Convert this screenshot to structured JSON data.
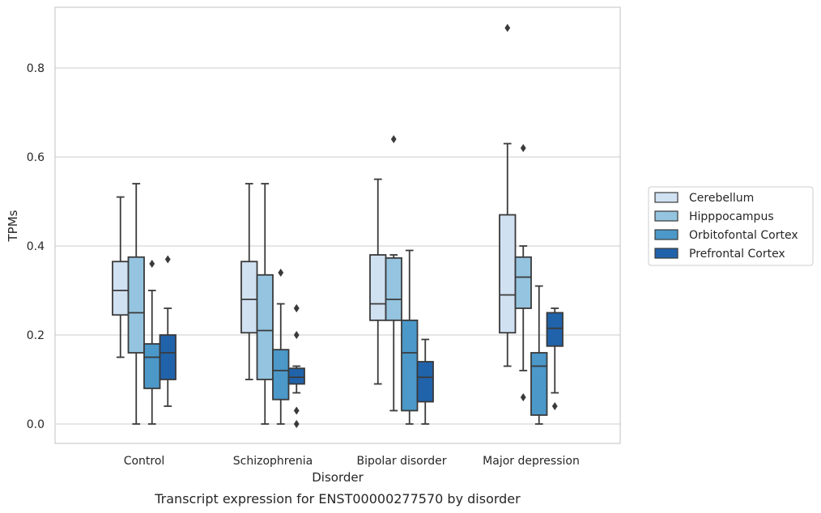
{
  "caption": "Transcript expression for ENST00000277570 by disorder",
  "chart_data": {
    "type": "box",
    "xlabel": "Disorder",
    "ylabel": "TPMs",
    "ylim": [
      -0.04,
      0.94
    ],
    "yticks": [
      0.0,
      0.2,
      0.4,
      0.6,
      0.8
    ],
    "ytick_labels": [
      "0.0",
      "0.2",
      "0.4",
      "0.6",
      "0.8"
    ],
    "grid": "horizontal",
    "legend_position": "right",
    "categories": [
      "Control",
      "Schizophrenia",
      "Bipolar disorder",
      "Major depression"
    ],
    "series": [
      {
        "name": "Cerebellum",
        "color": "#d0e1f2",
        "boxes": [
          {
            "min": 0.15,
            "q1": 0.245,
            "median": 0.3,
            "q3": 0.365,
            "max": 0.51,
            "outliers": []
          },
          {
            "min": 0.1,
            "q1": 0.205,
            "median": 0.28,
            "q3": 0.365,
            "max": 0.54,
            "outliers": []
          },
          {
            "min": 0.09,
            "q1": 0.233,
            "median": 0.27,
            "q3": 0.38,
            "max": 0.55,
            "outliers": []
          },
          {
            "min": 0.13,
            "q1": 0.205,
            "median": 0.29,
            "q3": 0.47,
            "max": 0.63,
            "outliers": [
              0.89
            ]
          }
        ]
      },
      {
        "name": "Hipppocampus",
        "color": "#94c4df",
        "boxes": [
          {
            "min": 0.0,
            "q1": 0.16,
            "median": 0.25,
            "q3": 0.375,
            "max": 0.54,
            "outliers": []
          },
          {
            "min": 0.0,
            "q1": 0.1,
            "median": 0.21,
            "q3": 0.335,
            "max": 0.54,
            "outliers": []
          },
          {
            "min": 0.03,
            "q1": 0.233,
            "median": 0.28,
            "q3": 0.373,
            "max": 0.38,
            "outliers": [
              0.64
            ]
          },
          {
            "min": 0.12,
            "q1": 0.26,
            "median": 0.33,
            "q3": 0.375,
            "max": 0.4,
            "outliers": [
              0.62,
              0.06
            ]
          }
        ]
      },
      {
        "name": "Orbitofontal Cortex",
        "color": "#4b98c9",
        "boxes": [
          {
            "min": 0.0,
            "q1": 0.08,
            "median": 0.15,
            "q3": 0.18,
            "max": 0.3,
            "outliers": [
              0.36
            ]
          },
          {
            "min": 0.0,
            "q1": 0.055,
            "median": 0.12,
            "q3": 0.167,
            "max": 0.27,
            "outliers": [
              0.34
            ]
          },
          {
            "min": 0.0,
            "q1": 0.03,
            "median": 0.16,
            "q3": 0.233,
            "max": 0.39,
            "outliers": []
          },
          {
            "min": 0.0,
            "q1": 0.02,
            "median": 0.13,
            "q3": 0.16,
            "max": 0.31,
            "outliers": []
          }
        ]
      },
      {
        "name": "Prefrontal Cortex",
        "color": "#2163aa",
        "boxes": [
          {
            "min": 0.04,
            "q1": 0.1,
            "median": 0.16,
            "q3": 0.2,
            "max": 0.26,
            "outliers": [
              0.37
            ]
          },
          {
            "min": 0.07,
            "q1": 0.09,
            "median": 0.105,
            "q3": 0.125,
            "max": 0.13,
            "outliers": [
              0.26,
              0.26,
              0.2,
              0.03,
              0.0
            ]
          },
          {
            "min": 0.0,
            "q1": 0.05,
            "median": 0.105,
            "q3": 0.14,
            "max": 0.19,
            "outliers": []
          },
          {
            "min": 0.07,
            "q1": 0.175,
            "median": 0.215,
            "q3": 0.25,
            "max": 0.26,
            "outliers": [
              0.04
            ]
          }
        ]
      }
    ]
  }
}
